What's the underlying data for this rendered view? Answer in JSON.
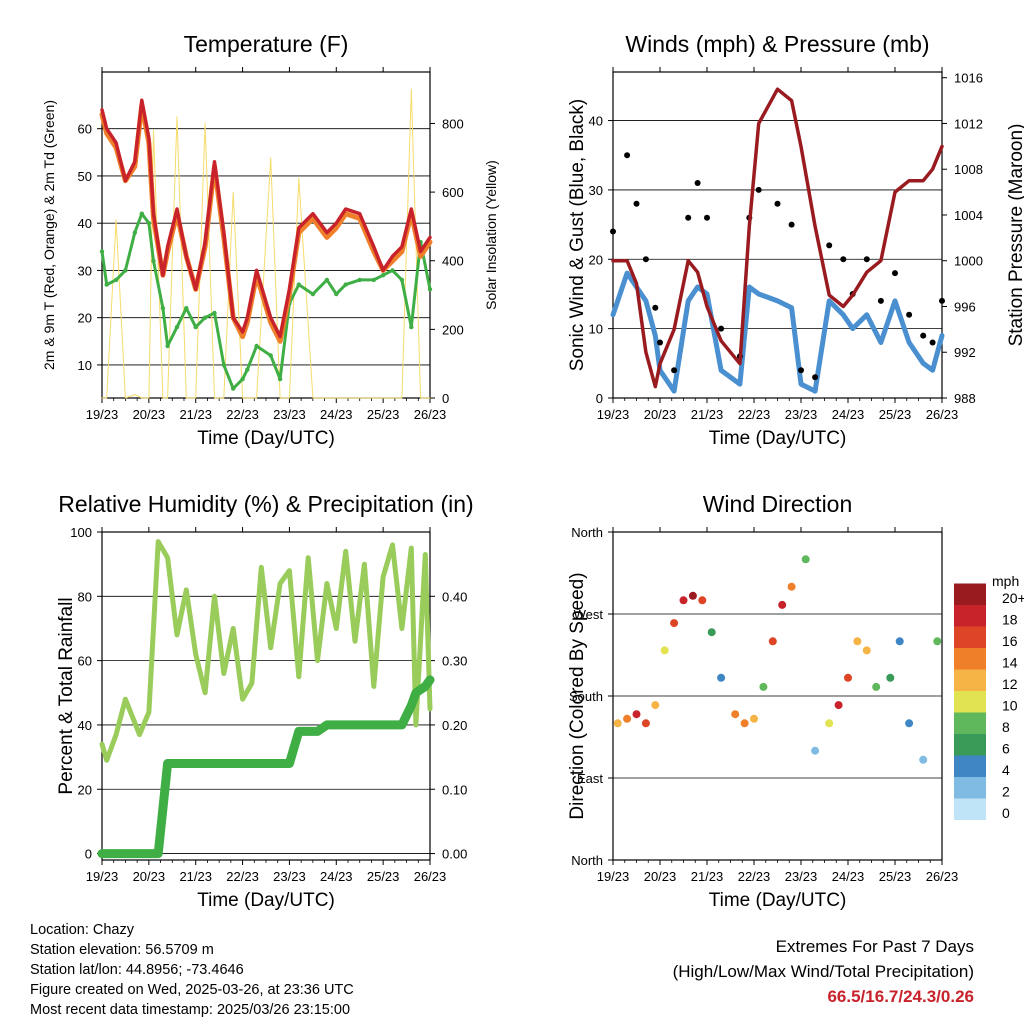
{
  "x_ticks": [
    "19/23",
    "20/23",
    "21/23",
    "22/23",
    "23/23",
    "24/23",
    "25/23",
    "26/23"
  ],
  "chart_data": [
    {
      "type": "line",
      "title": "Temperature (F)",
      "xlabel": "Time (Day/UTC)",
      "ylabel": "2m & 9m T (Red, Orange) & 2m Td (Green)",
      "y2label": "Solar Insolation (Yellow)",
      "ylim": [
        3,
        72
      ],
      "y2lim": [
        0,
        950
      ],
      "yticks": [
        "10",
        "20",
        "30",
        "40",
        "50",
        "60"
      ],
      "y2ticks": [
        "0",
        "200",
        "400",
        "600",
        "800"
      ],
      "grid": true,
      "x": [
        0,
        0.1,
        0.3,
        0.5,
        0.7,
        0.85,
        1,
        1.1,
        1.3,
        1.4,
        1.6,
        1.8,
        2,
        2.2,
        2.4,
        2.6,
        2.8,
        3,
        3.1,
        3.3,
        3.6,
        3.8,
        4,
        4.2,
        4.5,
        4.8,
        5,
        5.2,
        5.5,
        5.8,
        6,
        6.2,
        6.4,
        6.6,
        6.8,
        7
      ],
      "series": [
        {
          "name": "2m T",
          "color": "#c8222b",
          "values": [
            64,
            60,
            57,
            49,
            53,
            66,
            58,
            42,
            29,
            35,
            43,
            33,
            26,
            36,
            53,
            38,
            20,
            17,
            20,
            30,
            20,
            16,
            26,
            39,
            42,
            38,
            40,
            43,
            42,
            35,
            30,
            33,
            35,
            43,
            34,
            37
          ]
        },
        {
          "name": "9m T",
          "color": "#f07f2a",
          "values": [
            63,
            59,
            56,
            49,
            52,
            65,
            57,
            41,
            29,
            34,
            42,
            33,
            26,
            35,
            52,
            37,
            20,
            16,
            19,
            29,
            19,
            15,
            25,
            38,
            41,
            37,
            39,
            42,
            41,
            34,
            30,
            32,
            34,
            42,
            33,
            36
          ]
        },
        {
          "name": "2m Td",
          "color": "#3fae45",
          "values": [
            34,
            27,
            28,
            30,
            38,
            42,
            40,
            32,
            22,
            14,
            18,
            22,
            18,
            20,
            21,
            10,
            5,
            7,
            9,
            14,
            12,
            7,
            23,
            27,
            25,
            28,
            25,
            27,
            28,
            28,
            29,
            30,
            28,
            18,
            36,
            26
          ]
        },
        {
          "name": "Solar Insolation",
          "color": "#f6dc6b",
          "axis": "y2",
          "values": [
            0,
            0,
            520,
            0,
            10,
            0,
            0,
            780,
            0,
            0,
            820,
            0,
            0,
            800,
            0,
            0,
            600,
            0,
            0,
            0,
            700,
            0,
            0,
            640,
            0,
            0,
            0,
            0,
            0,
            0,
            0,
            0,
            0,
            900,
            0,
            0
          ]
        }
      ]
    },
    {
      "type": "scatter",
      "title": "Winds (mph) & Pressure (mb)",
      "xlabel": "Time (Day/UTC)",
      "ylabel": "Sonic Wind & Gust (Blue, Black)",
      "y2label": "Station Pressure (Maroon)",
      "ylim": [
        0,
        47
      ],
      "y2lim": [
        988,
        1016.5
      ],
      "yticks": [
        "0",
        "10",
        "20",
        "30",
        "40"
      ],
      "y2ticks": [
        "988",
        "992",
        "996",
        "1000",
        "1004",
        "1008",
        "1012",
        "1016"
      ],
      "grid": true,
      "x": [
        0,
        0.3,
        0.5,
        0.7,
        0.9,
        1.0,
        1.3,
        1.6,
        1.8,
        2.0,
        2.3,
        2.7,
        2.9,
        3.1,
        3.5,
        3.8,
        4.0,
        4.3,
        4.6,
        4.9,
        5.1,
        5.4,
        5.7,
        6.0,
        6.3,
        6.6,
        6.8,
        7
      ],
      "series": [
        {
          "name": "Sonic Wind",
          "color": "#4a90d0",
          "values": [
            12,
            18,
            16,
            14,
            9,
            4,
            1,
            14,
            16,
            15,
            4,
            2,
            16,
            15,
            14,
            13,
            2,
            1,
            14,
            12,
            10,
            12,
            8,
            14,
            8,
            5,
            4,
            9
          ]
        },
        {
          "name": "Gust",
          "color": "#000000",
          "values": [
            24,
            35,
            28,
            20,
            13,
            8,
            4,
            26,
            31,
            26,
            10,
            6,
            26,
            30,
            28,
            25,
            4,
            3,
            22,
            20,
            15,
            20,
            14,
            18,
            12,
            9,
            8,
            14
          ]
        },
        {
          "name": "Station Pressure",
          "color": "#9a1b1f",
          "axis": "y2",
          "values": [
            1000,
            1000,
            998,
            992,
            989,
            991,
            994,
            1000,
            999,
            996,
            993,
            991,
            1003,
            1012,
            1015,
            1014,
            1010,
            1003,
            997,
            996,
            997,
            999,
            1000,
            1006,
            1007,
            1007,
            1008,
            1010
          ]
        }
      ]
    },
    {
      "type": "line",
      "title": "Relative Humidity (%) & Precipitation (in)",
      "xlabel": "Time (Day/UTC)",
      "ylabel": "Percent & Total Rainfall",
      "ylim": [
        -2,
        100
      ],
      "y2lim": [
        -0.01,
        0.5
      ],
      "yticks": [
        "0",
        "20",
        "40",
        "60",
        "80",
        "100"
      ],
      "y2ticks": [
        "0.00",
        "0.10",
        "0.20",
        "0.30",
        "0.40"
      ],
      "grid": true,
      "x": [
        0,
        0.1,
        0.3,
        0.5,
        0.8,
        1.0,
        1.2,
        1.4,
        1.6,
        1.8,
        2.0,
        2.2,
        2.4,
        2.6,
        2.8,
        3.0,
        3.2,
        3.4,
        3.6,
        3.8,
        4.0,
        4.2,
        4.4,
        4.6,
        4.8,
        5.0,
        5.2,
        5.4,
        5.6,
        5.8,
        6.0,
        6.2,
        6.4,
        6.6,
        6.7,
        6.9,
        7
      ],
      "series": [
        {
          "name": "Relative Humidity",
          "color": "#99cc5a",
          "values": [
            34,
            29,
            37,
            48,
            37,
            44,
            97,
            92,
            68,
            82,
            62,
            50,
            80,
            56,
            70,
            48,
            53,
            89,
            64,
            84,
            88,
            55,
            92,
            60,
            84,
            70,
            94,
            66,
            90,
            52,
            86,
            96,
            70,
            95,
            40,
            93,
            45
          ]
        },
        {
          "name": "Total Precipitation",
          "color": "#3fae45",
          "axis": "y2",
          "values": [
            0,
            0,
            0,
            0,
            0,
            0,
            0,
            0.14,
            0.14,
            0.14,
            0.14,
            0.14,
            0.14,
            0.14,
            0.14,
            0.14,
            0.14,
            0.14,
            0.14,
            0.14,
            0.14,
            0.19,
            0.19,
            0.19,
            0.2,
            0.2,
            0.2,
            0.2,
            0.2,
            0.2,
            0.2,
            0.2,
            0.2,
            0.23,
            0.25,
            0.26,
            0.27
          ]
        }
      ]
    },
    {
      "type": "scatter",
      "title": "Wind Direction",
      "xlabel": "Time (Day/UTC)",
      "ylabel": "Direction (Colored By Speed)",
      "ylim": [
        0,
        360
      ],
      "yticks": [
        "North",
        "East",
        "South",
        "West",
        "North"
      ],
      "grid": true,
      "colorbar_title": "mph",
      "colorbar_labels": [
        "0",
        "2",
        "4",
        "6",
        "8",
        "10",
        "12",
        "14",
        "16",
        "18",
        "20+"
      ],
      "colorbar_colors": [
        "#bfe3f7",
        "#7fbbe3",
        "#3f86c4",
        "#3a9a58",
        "#5fb85c",
        "#e1e353",
        "#f6b447",
        "#f07f2a",
        "#de4426",
        "#c8222b",
        "#9a1b1f"
      ],
      "x": [
        0.1,
        0.3,
        0.5,
        0.7,
        0.9,
        1.1,
        1.3,
        1.5,
        1.7,
        1.9,
        2.1,
        2.3,
        2.6,
        2.8,
        3.0,
        3.2,
        3.4,
        3.6,
        3.8,
        4.1,
        4.3,
        4.6,
        4.8,
        5.0,
        5.2,
        5.4,
        5.6,
        5.9,
        6.1,
        6.3,
        6.6,
        6.9
      ],
      "series": [
        {
          "name": "Direction",
          "values": [
            150,
            155,
            160,
            150,
            170,
            230,
            260,
            285,
            290,
            285,
            250,
            200,
            160,
            150,
            155,
            190,
            240,
            280,
            300,
            330,
            120,
            150,
            170,
            200,
            240,
            230,
            190,
            200,
            240,
            150,
            110,
            240
          ],
          "speeds": [
            12,
            15,
            18,
            17,
            12,
            10,
            16,
            19,
            20,
            17,
            6,
            4,
            14,
            15,
            12,
            9,
            16,
            19,
            14,
            8,
            3,
            10,
            18,
            16,
            12,
            12,
            8,
            6,
            4,
            4,
            3,
            8
          ]
        }
      ]
    }
  ],
  "info": {
    "location": "Location: Chazy",
    "elevation": "Station elevation: 56.5709 m",
    "latlon": "Station lat/lon: 44.8956; -73.4646",
    "created": "Figure created on Wed, 2025-03-26, at 23:36 UTC",
    "recent": "Most recent data timestamp: 2025/03/26 23:15:00"
  },
  "extremes": {
    "line1": "Extremes For Past 7 Days",
    "line2": "(High/Low/Max Wind/Total Precipitation)",
    "values": "66.5/16.7/24.3/0.26"
  }
}
